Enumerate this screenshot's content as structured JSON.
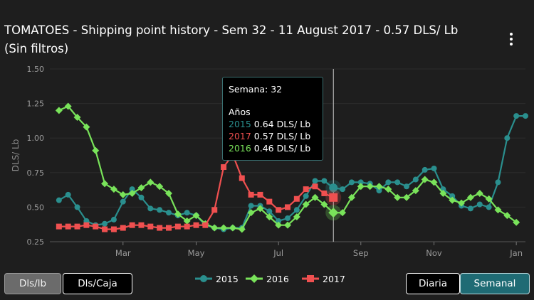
{
  "header": {
    "title": "TOMATOES - Shipping point history - Sem 32 - 11 August 2017 - 0.57 DLS/ Lb",
    "subtitle": "(Sin filtros)",
    "menu_icon": "kebab-vertical-icon"
  },
  "tooltip": {
    "heading": "Semana: 32",
    "section": "Años",
    "rows": [
      {
        "year": "2015",
        "text": " 0.64 DLS/ Lb",
        "color": "#2a8f8e"
      },
      {
        "year": "2017",
        "text": " 0.57 DLS/ Lb",
        "color": "#f05050"
      },
      {
        "year": "2016",
        "text": " 0.46 DLS/ Lb",
        "color": "#79e35a"
      }
    ]
  },
  "legend": [
    {
      "name": "2015",
      "color": "#2a8f8e",
      "marker": "circle"
    },
    {
      "name": "2016",
      "color": "#79e35a",
      "marker": "diamond"
    },
    {
      "name": "2017",
      "color": "#f05050",
      "marker": "square"
    }
  ],
  "unit_buttons": {
    "dls_lb": "Dls/lb",
    "dls_caja": "Dls/Caja"
  },
  "period_buttons": {
    "diaria": "Diaria",
    "semanal": "Semanal"
  },
  "chart_data": {
    "type": "line",
    "ylabel": "DLS/ Lb",
    "ylim": [
      0.25,
      1.5
    ],
    "yticks": [
      0.25,
      0.5,
      0.75,
      1.0,
      1.25,
      1.5
    ],
    "ytick_labels": [
      "0.25",
      "0.50",
      "0.75",
      "1.00",
      "1.25",
      "1.50"
    ],
    "xlim": [
      1,
      53
    ],
    "xticks": [
      9,
      17,
      26,
      35,
      43,
      52
    ],
    "xtick_labels": [
      "Mar",
      "May",
      "Jul",
      "Sep",
      "Nov",
      "Jan"
    ],
    "crosshair_week": 32,
    "series": [
      {
        "name": "2015",
        "color": "#2a8f8e",
        "marker": "circle",
        "x": [
          2,
          3,
          4,
          5,
          6,
          7,
          8,
          9,
          10,
          11,
          12,
          13,
          14,
          15,
          16,
          17,
          18,
          19,
          20,
          21,
          22,
          23,
          24,
          25,
          26,
          27,
          28,
          29,
          30,
          31,
          32,
          33,
          34,
          35,
          36,
          37,
          38,
          39,
          40,
          41,
          42,
          43,
          44,
          45,
          46,
          47,
          48,
          49,
          50,
          51,
          52,
          53
        ],
        "y": [
          0.55,
          0.59,
          0.5,
          0.4,
          0.37,
          0.38,
          0.41,
          0.54,
          0.63,
          0.57,
          0.49,
          0.48,
          0.46,
          0.44,
          0.46,
          0.44,
          0.37,
          0.35,
          0.34,
          0.35,
          0.35,
          0.51,
          0.51,
          0.47,
          0.4,
          0.42,
          0.48,
          0.58,
          0.69,
          0.69,
          0.64,
          0.63,
          0.68,
          0.68,
          0.67,
          0.62,
          0.68,
          0.68,
          0.65,
          0.7,
          0.77,
          0.78,
          0.63,
          0.58,
          0.51,
          0.49,
          0.52,
          0.5,
          0.68,
          1.0,
          1.16,
          1.16
        ]
      },
      {
        "name": "2016",
        "color": "#79e35a",
        "marker": "diamond",
        "x": [
          2,
          3,
          4,
          5,
          6,
          7,
          8,
          9,
          10,
          11,
          12,
          13,
          14,
          15,
          16,
          17,
          18,
          19,
          20,
          21,
          22,
          23,
          24,
          25,
          26,
          27,
          28,
          29,
          30,
          31,
          32,
          33,
          34,
          35,
          36,
          37,
          38,
          39,
          40,
          41,
          42,
          43,
          44,
          45,
          46,
          47,
          48,
          49,
          50,
          51,
          52
        ],
        "y": [
          1.2,
          1.23,
          1.15,
          1.08,
          0.91,
          0.67,
          0.63,
          0.59,
          0.6,
          0.64,
          0.68,
          0.65,
          0.6,
          0.45,
          0.4,
          0.44,
          0.38,
          0.35,
          0.35,
          0.35,
          0.34,
          0.46,
          0.49,
          0.43,
          0.37,
          0.37,
          0.43,
          0.52,
          0.57,
          0.52,
          0.46,
          0.46,
          0.57,
          0.65,
          0.65,
          0.65,
          0.63,
          0.57,
          0.57,
          0.62,
          0.7,
          0.68,
          0.6,
          0.55,
          0.53,
          0.57,
          0.6,
          0.56,
          0.48,
          0.44,
          0.39
        ]
      },
      {
        "name": "2017",
        "color": "#f05050",
        "marker": "square",
        "x": [
          2,
          3,
          4,
          5,
          6,
          7,
          8,
          9,
          10,
          11,
          12,
          13,
          14,
          15,
          16,
          17,
          18,
          19,
          20,
          21,
          22,
          23,
          24,
          25,
          26,
          27,
          28,
          29,
          30,
          31,
          32
        ],
        "y": [
          0.36,
          0.36,
          0.36,
          0.37,
          0.36,
          0.34,
          0.34,
          0.35,
          0.37,
          0.37,
          0.36,
          0.35,
          0.35,
          0.36,
          0.36,
          0.37,
          0.37,
          0.48,
          0.79,
          0.88,
          0.71,
          0.59,
          0.59,
          0.54,
          0.48,
          0.5,
          0.56,
          0.63,
          0.65,
          0.6,
          0.57
        ]
      }
    ]
  }
}
